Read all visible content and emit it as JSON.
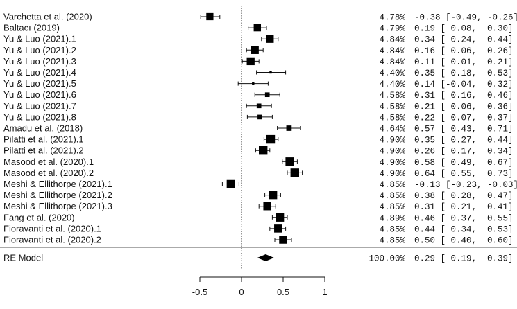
{
  "chart_data": {
    "type": "forest",
    "title": "",
    "xlabel": "",
    "xlim": [
      -0.5,
      1
    ],
    "xticks": [
      -0.5,
      0,
      0.5,
      1
    ],
    "xtick_labels": [
      "-0.5",
      "0",
      "0.5",
      "1"
    ],
    "reference_line": 0,
    "studies": [
      {
        "label": "Varchetta  et al. (2020)",
        "weight": "4.78%",
        "estimate": -0.38,
        "ci_low": -0.49,
        "ci_high": -0.26,
        "ci_text": "-0.38 [-0.49, -0.26]"
      },
      {
        "label": "Baltacı (2019)",
        "weight": "4.79%",
        "estimate": 0.19,
        "ci_low": 0.08,
        "ci_high": 0.3,
        "ci_text": "0.19 [ 0.08,  0.30]"
      },
      {
        "label": "Yu &  Luo (2021).1",
        "weight": "4.84%",
        "estimate": 0.34,
        "ci_low": 0.24,
        "ci_high": 0.44,
        "ci_text": "0.34 [ 0.24,  0.44]"
      },
      {
        "label": "Yu &  Luo (2021).2",
        "weight": "4.84%",
        "estimate": 0.16,
        "ci_low": 0.06,
        "ci_high": 0.26,
        "ci_text": "0.16 [ 0.06,  0.26]"
      },
      {
        "label": "Yu &  Luo (2021).3",
        "weight": "4.84%",
        "estimate": 0.11,
        "ci_low": 0.01,
        "ci_high": 0.21,
        "ci_text": "0.11 [ 0.01,  0.21]"
      },
      {
        "label": "Yu &  Luo (2021).4",
        "weight": "4.40%",
        "estimate": 0.35,
        "ci_low": 0.18,
        "ci_high": 0.53,
        "ci_text": "0.35 [ 0.18,  0.53]"
      },
      {
        "label": "Yu &  Luo (2021).5",
        "weight": "4.40%",
        "estimate": 0.14,
        "ci_low": -0.04,
        "ci_high": 0.32,
        "ci_text": "0.14 [-0.04,  0.32]"
      },
      {
        "label": "Yu &  Luo (2021).6",
        "weight": "4.58%",
        "estimate": 0.31,
        "ci_low": 0.16,
        "ci_high": 0.46,
        "ci_text": "0.31 [ 0.16,  0.46]"
      },
      {
        "label": "Yu &  Luo (2021).7",
        "weight": "4.58%",
        "estimate": 0.21,
        "ci_low": 0.06,
        "ci_high": 0.36,
        "ci_text": "0.21 [ 0.06,  0.36]"
      },
      {
        "label": "Yu &  Luo (2021).8",
        "weight": "4.58%",
        "estimate": 0.22,
        "ci_low": 0.07,
        "ci_high": 0.37,
        "ci_text": "0.22 [ 0.07,  0.37]"
      },
      {
        "label": "Amadu et al. (2018)",
        "weight": "4.64%",
        "estimate": 0.57,
        "ci_low": 0.43,
        "ci_high": 0.71,
        "ci_text": "0.57 [ 0.43,  0.71]"
      },
      {
        "label": "Pilatti et al. (2021).1",
        "weight": "4.90%",
        "estimate": 0.35,
        "ci_low": 0.27,
        "ci_high": 0.44,
        "ci_text": "0.35 [ 0.27,  0.44]"
      },
      {
        "label": "Pilatti et al. (2021).2",
        "weight": "4.90%",
        "estimate": 0.26,
        "ci_low": 0.17,
        "ci_high": 0.34,
        "ci_text": "0.26 [ 0.17,  0.34]"
      },
      {
        "label": "Masood et al. (2020).1",
        "weight": "4.90%",
        "estimate": 0.58,
        "ci_low": 0.49,
        "ci_high": 0.67,
        "ci_text": "0.58 [ 0.49,  0.67]"
      },
      {
        "label": "Masood et al. (2020).2",
        "weight": "4.90%",
        "estimate": 0.64,
        "ci_low": 0.55,
        "ci_high": 0.73,
        "ci_text": "0.64 [ 0.55,  0.73]"
      },
      {
        "label": "Meshi & Ellithorpe (2021).1",
        "weight": "4.85%",
        "estimate": -0.13,
        "ci_low": -0.23,
        "ci_high": -0.03,
        "ci_text": "-0.13 [-0.23, -0.03]"
      },
      {
        "label": "Meshi & Ellithorpe (2021).2",
        "weight": "4.85%",
        "estimate": 0.38,
        "ci_low": 0.28,
        "ci_high": 0.47,
        "ci_text": "0.38 [ 0.28,  0.47]"
      },
      {
        "label": "Meshi & Ellithorpe (2021).3",
        "weight": "4.85%",
        "estimate": 0.31,
        "ci_low": 0.21,
        "ci_high": 0.41,
        "ci_text": "0.31 [ 0.21,  0.41]"
      },
      {
        "label": "Fang et al. (2020)",
        "weight": "4.89%",
        "estimate": 0.46,
        "ci_low": 0.37,
        "ci_high": 0.55,
        "ci_text": "0.46 [ 0.37,  0.55]"
      },
      {
        "label": "Fioravanti et al. (2020).1",
        "weight": "4.85%",
        "estimate": 0.44,
        "ci_low": 0.34,
        "ci_high": 0.53,
        "ci_text": "0.44 [ 0.34,  0.53]"
      },
      {
        "label": "Fioravanti et al. (2020).2",
        "weight": "4.85%",
        "estimate": 0.5,
        "ci_low": 0.4,
        "ci_high": 0.6,
        "ci_text": "0.50 [ 0.40,  0.60]"
      }
    ],
    "summary": {
      "label": "RE Model",
      "weight": "100.00%",
      "estimate": 0.29,
      "ci_low": 0.19,
      "ci_high": 0.39,
      "ci_text": "0.29 [ 0.19,  0.39]"
    }
  }
}
